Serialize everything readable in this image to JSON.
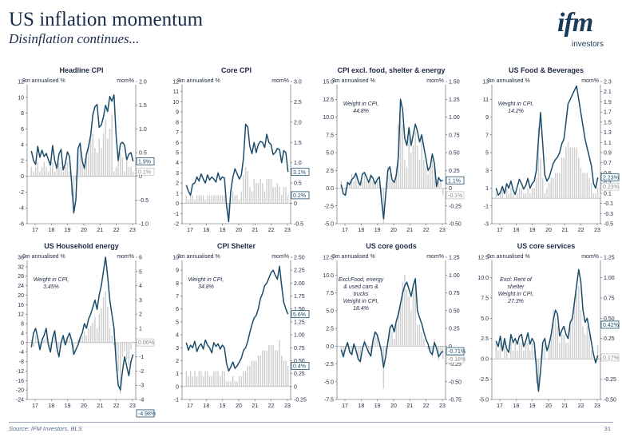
{
  "title": "US inflation momentum",
  "subtitle": "Disinflation continues...",
  "logo": {
    "brand": "ifm",
    "name": "investors"
  },
  "footer": {
    "source": "Source: IFM Investors, BLS",
    "page": "31"
  },
  "colors": {
    "line": "#1b4d6b",
    "bars": "#cfcfcf",
    "text": "#1f2a44"
  },
  "chart_data": [
    {
      "type": "bar+line",
      "title": "Headline CPI",
      "left_label": "3m annualised %",
      "right_label": "mom%",
      "left_ticks": [
        "12",
        "10",
        "8",
        "6",
        "4",
        "2",
        "0",
        "-2",
        "-4",
        "-6"
      ],
      "right_ticks": [
        "2.0",
        "1.5",
        "1.0",
        "0.5",
        "0",
        "-0.5",
        "-1.0"
      ],
      "left_range": [
        -6,
        12
      ],
      "right_range": [
        -1.0,
        2.0
      ],
      "x_labels": [
        "17",
        "18",
        "19",
        "20",
        "21",
        "22",
        "23"
      ],
      "line": [
        3.2,
        2.0,
        1.5,
        3.8,
        2.4,
        3.3,
        2.5,
        2.9,
        2.1,
        1.4,
        3.9,
        2.0,
        1.0,
        2.8,
        3.4,
        0.8,
        1.6,
        3.1,
        2.5,
        -0.8,
        -4.6,
        -3.0,
        3.5,
        4.2,
        1.9,
        1.0,
        2.8,
        3.8,
        5.2,
        7.8,
        8.8,
        9.1,
        6.2,
        6.5,
        7.5,
        9.0,
        8.2,
        10.1,
        9.5,
        10.3,
        5.2,
        2.0,
        4.1,
        4.3,
        3.9,
        2.1,
        2.8,
        3.0,
        1.9
      ],
      "bars": [
        0.2,
        0.1,
        0.2,
        0.3,
        0.1,
        0.2,
        0.3,
        0.2,
        0.1,
        0.2,
        0.3,
        0.1,
        0.2,
        0.3,
        0.2,
        0.1,
        0.2,
        0.3,
        0.1,
        -0.4,
        -0.8,
        -0.1,
        0.5,
        0.6,
        0.4,
        0.2,
        0.4,
        0.7,
        0.8,
        0.9,
        0.6,
        0.5,
        0.8,
        0.6,
        0.9,
        1.2,
        0.8,
        1.0,
        1.3,
        0.1,
        0.2,
        0.4,
        0.5,
        0.4,
        0.1,
        0.4,
        0.2,
        0.2,
        0.1
      ],
      "callouts": [
        {
          "text": "1.9%",
          "value": 1.9,
          "boxed": true
        },
        {
          "text": "0.1%",
          "value": 0.1,
          "boxed": false
        }
      ]
    },
    {
      "type": "bar+line",
      "title": "Core CPI",
      "left_label": "3m annualised %",
      "right_label": "mom%",
      "left_ticks": [
        "12",
        "11",
        "10",
        "9",
        "8",
        "7",
        "6",
        "5",
        "4",
        "3",
        "2",
        "1",
        "0",
        "-1",
        "-2"
      ],
      "right_ticks": [
        "3.0",
        "2.5",
        "2.0",
        "1.5",
        "1.0",
        "0.5",
        "0",
        "-0.5"
      ],
      "left_range": [
        -2,
        12
      ],
      "right_range": [
        -0.5,
        3.0
      ],
      "x_labels": [
        "17",
        "18",
        "19",
        "20",
        "21",
        "22",
        "23"
      ],
      "line": [
        1.8,
        1.2,
        0.8,
        1.9,
        2.0,
        2.6,
        2.2,
        2.9,
        2.4,
        2.0,
        2.8,
        2.3,
        2.6,
        2.4,
        2.1,
        3.0,
        2.3,
        2.6,
        2.5,
        -0.2,
        -1.8,
        1.2,
        2.6,
        3.4,
        2.9,
        2.4,
        2.8,
        4.5,
        7.8,
        7.5,
        5.6,
        4.9,
        6.0,
        5.0,
        5.8,
        6.1,
        6.0,
        5.5,
        6.8,
        6.0,
        5.8,
        4.8,
        5.0,
        5.4,
        5.3,
        4.0,
        5.2,
        5.0,
        3.1
      ],
      "bars": [
        0.2,
        0.1,
        0.2,
        0.2,
        0.1,
        0.2,
        0.2,
        0.2,
        0.2,
        0.1,
        0.2,
        0.2,
        0.2,
        0.2,
        0.2,
        0.2,
        0.2,
        0.2,
        0.2,
        -0.1,
        -0.4,
        0.1,
        0.3,
        0.2,
        0.2,
        0.1,
        0.3,
        0.7,
        0.9,
        0.8,
        0.4,
        0.3,
        0.6,
        0.5,
        0.5,
        0.6,
        0.5,
        0.3,
        0.6,
        0.6,
        0.6,
        0.4,
        0.4,
        0.5,
        0.4,
        0.2,
        0.4,
        0.4,
        0.2
      ],
      "callouts": [
        {
          "text": "3.1%",
          "value": 3.1,
          "boxed": true
        },
        {
          "text": "0.2%",
          "value": 0.2,
          "boxed": true
        }
      ]
    },
    {
      "type": "bar+line",
      "title": "CPI excl. food, shelter & energy",
      "left_label": "3m annualised %",
      "right_label": "mom%",
      "left_ticks": [
        "15.0",
        "12.5",
        "10.0",
        "7.5",
        "5.0",
        "2.5",
        "0.0",
        "-2.5",
        "-5.0"
      ],
      "right_ticks": [
        "1.50",
        "1.25",
        "1.00",
        "0.75",
        "0.50",
        "0.25",
        "0",
        "-0.25",
        "-0.50"
      ],
      "left_range": [
        -5,
        15
      ],
      "right_range": [
        -0.5,
        1.5
      ],
      "x_labels": [
        "17",
        "18",
        "19",
        "20",
        "21",
        "22",
        "23"
      ],
      "annotation": [
        "Weight in CPI,",
        "44.8%"
      ],
      "line": [
        0.5,
        -0.8,
        -1.0,
        0.8,
        0.5,
        1.2,
        1.5,
        2.1,
        1.0,
        0.4,
        2.0,
        2.2,
        1.5,
        0.8,
        1.8,
        1.4,
        0.6,
        1.2,
        1.6,
        -1.5,
        -4.3,
        -1.0,
        2.5,
        3.0,
        1.2,
        0.8,
        1.8,
        4.5,
        12.5,
        11.0,
        7.0,
        6.0,
        8.5,
        6.0,
        7.5,
        9.0,
        8.0,
        6.5,
        7.5,
        5.8,
        4.2,
        2.5,
        3.0,
        4.8,
        3.5,
        0.2,
        1.5,
        1.0,
        1.1
      ],
      "bars": [
        0.1,
        0.0,
        -0.1,
        0.1,
        0.1,
        0.2,
        0.1,
        0.2,
        0.1,
        0.0,
        0.1,
        0.2,
        0.1,
        0.1,
        0.2,
        0.1,
        0.1,
        0.1,
        0.1,
        -0.2,
        -0.5,
        0.0,
        0.3,
        0.2,
        0.1,
        0.1,
        0.3,
        0.9,
        1.1,
        0.9,
        0.4,
        0.3,
        0.7,
        0.5,
        0.6,
        0.8,
        0.6,
        0.4,
        0.7,
        0.4,
        0.3,
        0.2,
        0.3,
        0.4,
        0.3,
        0.0,
        0.1,
        0.1,
        -0.1
      ],
      "callouts": [
        {
          "text": "1.1%",
          "value": 1.1,
          "boxed": true
        },
        {
          "text": "-0.1%",
          "value": -0.1,
          "boxed": false
        }
      ]
    },
    {
      "type": "bar+line",
      "title": "US Food & Beverages",
      "left_label": "3m annualised %",
      "right_label": "mom%",
      "left_ticks": [
        "13",
        "11",
        "9",
        "7",
        "5",
        "3",
        "1",
        "-1",
        "-3"
      ],
      "right_ticks": [
        "2.3",
        "2.1",
        "1.9",
        "1.7",
        "1.5",
        "1.3",
        "1.1",
        "0.9",
        "0.7",
        "0.5",
        "0.3",
        "0.1",
        "-0.1",
        "-0.3",
        "-0.5"
      ],
      "left_range": [
        -3,
        13
      ],
      "right_range": [
        -0.5,
        2.3
      ],
      "x_labels": [
        "17",
        "18",
        "19",
        "20",
        "21",
        "22",
        "23"
      ],
      "annotation": [
        "Weight in CPI,",
        "14.2%"
      ],
      "line": [
        1.0,
        0.2,
        0.5,
        1.2,
        0.4,
        1.5,
        1.0,
        1.8,
        0.8,
        0.3,
        1.2,
        2.0,
        1.5,
        0.9,
        1.3,
        2.1,
        1.0,
        1.5,
        1.8,
        3.0,
        6.5,
        9.5,
        6.0,
        2.5,
        1.8,
        2.2,
        3.0,
        3.8,
        4.2,
        4.5,
        5.0,
        6.0,
        6.5,
        8.5,
        10.5,
        11.0,
        11.5,
        12.0,
        12.5,
        11.0,
        9.5,
        8.0,
        6.5,
        5.5,
        4.5,
        3.5,
        1.5,
        1.0,
        2.2
      ],
      "bars": [
        0.1,
        0.0,
        0.1,
        0.2,
        0.0,
        0.2,
        0.1,
        0.2,
        0.1,
        0.0,
        0.1,
        0.2,
        0.2,
        0.1,
        0.1,
        0.2,
        0.1,
        0.2,
        0.2,
        0.4,
        1.4,
        0.8,
        0.4,
        0.1,
        0.2,
        0.3,
        0.4,
        0.4,
        0.5,
        0.5,
        0.5,
        0.8,
        0.8,
        1.0,
        1.1,
        1.0,
        1.0,
        1.0,
        1.0,
        0.8,
        0.6,
        0.5,
        0.5,
        0.5,
        0.4,
        0.3,
        0.1,
        0.1,
        0.2
      ],
      "callouts": [
        {
          "text": "2.23%",
          "value": 2.23,
          "boxed": true
        },
        {
          "text": "0.23%",
          "value": 0.23,
          "boxed": false
        }
      ]
    },
    {
      "type": "bar+line",
      "title": "US Household energy",
      "left_label": "3m annualised %",
      "right_label": "mom%",
      "left_ticks": [
        "36",
        "32",
        "28",
        "24",
        "20",
        "16",
        "12",
        "8",
        "4",
        "0",
        "-4",
        "-8",
        "-12",
        "-16",
        "-20",
        "-24"
      ],
      "right_ticks": [
        "6",
        "5",
        "4",
        "3",
        "2",
        "1",
        "0",
        "-1",
        "-2",
        "-3",
        "-4"
      ],
      "left_range": [
        -24,
        36
      ],
      "right_range": [
        -4,
        6
      ],
      "x_labels": [
        "17",
        "18",
        "19",
        "20",
        "21",
        "22",
        "23"
      ],
      "annotation": [
        "Weight in CPI,",
        "3.45%"
      ],
      "line": [
        -2,
        4,
        6,
        2,
        -3,
        1,
        3,
        6,
        -1,
        -4,
        2,
        5,
        -2,
        -6,
        0,
        3,
        -1,
        2,
        4,
        1,
        -5,
        -3,
        -1,
        2,
        4,
        8,
        6,
        10,
        12,
        15,
        18,
        14,
        20,
        24,
        30,
        36,
        28,
        18,
        12,
        6,
        -8,
        -18,
        -20,
        -12,
        -6,
        -10,
        -14,
        -8,
        -4.98
      ],
      "bars": [
        0.2,
        -0.3,
        0.5,
        0.1,
        -0.2,
        0.3,
        0.2,
        0.4,
        -0.1,
        -0.3,
        0.2,
        0.5,
        -0.2,
        -0.4,
        0.1,
        0.3,
        -0.1,
        0.2,
        0.4,
        -0.2,
        -0.5,
        -0.1,
        0.2,
        0.3,
        0.4,
        0.8,
        0.5,
        1.0,
        1.2,
        1.4,
        1.8,
        1.0,
        2.0,
        2.4,
        3.2,
        3.6,
        2.5,
        1.0,
        0.5,
        -0.2,
        -1.0,
        -2.0,
        -3.6,
        -1.0,
        -0.6,
        -1.2,
        -1.6,
        -0.5,
        0.06
      ],
      "callouts": [
        {
          "text": "0.06%",
          "value": 0.06,
          "boxed": false
        },
        {
          "text": "-4.98%",
          "value": -4.98,
          "boxed": true
        }
      ]
    },
    {
      "type": "bar+line",
      "title": "CPI Shelter",
      "left_label": "3m annualised %",
      "right_label": "mom%",
      "left_ticks": [
        "10",
        "9",
        "8",
        "7",
        "6",
        "5",
        "4",
        "3",
        "2",
        "1",
        "0",
        "-1"
      ],
      "right_ticks": [
        "2.50",
        "2.25",
        "2.00",
        "1.75",
        "1.50",
        "1.25",
        "1.00",
        "0.75",
        "0.50",
        "0.25",
        "0",
        "-0.25"
      ],
      "left_range": [
        -1,
        10
      ],
      "right_range": [
        -0.25,
        2.5
      ],
      "x_labels": [
        "17",
        "18",
        "19",
        "20",
        "21",
        "22",
        "23"
      ],
      "annotation": [
        "Weight in CPI,",
        "34.8%"
      ],
      "line": [
        3.4,
        2.8,
        3.2,
        3.0,
        3.5,
        2.7,
        3.1,
        3.3,
        2.9,
        3.6,
        3.2,
        3.0,
        2.6,
        3.4,
        3.1,
        3.3,
        2.9,
        3.2,
        3.0,
        1.8,
        1.2,
        1.5,
        1.9,
        1.4,
        1.6,
        1.9,
        2.2,
        2.8,
        3.0,
        3.5,
        4.2,
        4.8,
        5.3,
        5.5,
        6.0,
        6.8,
        7.2,
        7.8,
        8.0,
        8.4,
        8.8,
        9.0,
        8.6,
        8.3,
        9.3,
        7.8,
        6.5,
        6.0,
        5.6
      ],
      "bars": [
        0.3,
        0.2,
        0.3,
        0.2,
        0.3,
        0.2,
        0.3,
        0.3,
        0.2,
        0.3,
        0.3,
        0.2,
        0.2,
        0.3,
        0.3,
        0.3,
        0.2,
        0.3,
        0.3,
        0.1,
        0.1,
        0.1,
        0.2,
        0.1,
        0.1,
        0.2,
        0.2,
        0.3,
        0.3,
        0.4,
        0.4,
        0.5,
        0.5,
        0.5,
        0.6,
        0.6,
        0.7,
        0.7,
        0.7,
        0.8,
        0.8,
        0.8,
        0.7,
        0.7,
        0.9,
        0.6,
        0.5,
        0.5,
        0.4
      ],
      "callouts": [
        {
          "text": "5.6%",
          "value": 5.6,
          "boxed": true
        },
        {
          "text": "0.4%",
          "value": 0.4,
          "boxed": true
        }
      ]
    },
    {
      "type": "bar+line",
      "title": "US core goods",
      "left_label": "3m annualised %",
      "right_label": "mom%",
      "left_ticks": [
        "12.5",
        "10.0",
        "7.5",
        "5.0",
        "2.5",
        "0.0",
        "-2.5",
        "-5.0",
        "-7.5"
      ],
      "right_ticks": [
        "1.25",
        "1.00",
        "0.75",
        "0.50",
        "0.25",
        "0",
        "-0.25",
        "-0.50",
        "-0.75"
      ],
      "left_range": [
        -7.5,
        12.5
      ],
      "right_range": [
        -0.75,
        1.25
      ],
      "x_labels": [
        "17",
        "18",
        "19",
        "20",
        "21",
        "22",
        "23"
      ],
      "annotation": [
        "Excl:Food, energy",
        "& used cars &",
        "trucks",
        "Weight in CPI,",
        "18.4%"
      ],
      "line": [
        -0.5,
        -1.5,
        -0.3,
        0.5,
        -0.8,
        -1.2,
        0.3,
        -0.6,
        -1.8,
        -2.2,
        -0.4,
        0.6,
        -0.2,
        -0.9,
        -1.4,
        0.8,
        2.0,
        1.6,
        0.5,
        -0.8,
        -3.0,
        -1.5,
        0.5,
        2.5,
        3.0,
        2.0,
        3.5,
        4.5,
        6.0,
        7.5,
        8.5,
        9.0,
        8.0,
        7.0,
        8.5,
        9.5,
        5.0,
        4.0,
        3.2,
        2.0,
        1.0,
        0.3,
        -0.8,
        -1.2,
        0.5,
        -0.3,
        -1.5,
        -1.0,
        -0.7
      ],
      "bars": [
        -0.05,
        -0.15,
        0.0,
        0.05,
        -0.1,
        -0.1,
        0.05,
        -0.05,
        -0.2,
        -0.2,
        -0.05,
        0.1,
        0.0,
        -0.1,
        -0.1,
        0.1,
        0.2,
        0.15,
        0.05,
        -0.1,
        -0.6,
        -0.1,
        0.1,
        0.3,
        0.2,
        0.1,
        0.3,
        0.5,
        0.6,
        0.9,
        1.0,
        0.8,
        0.7,
        0.5,
        0.8,
        0.9,
        0.3,
        0.3,
        0.2,
        0.1,
        0.0,
        -0.05,
        -0.1,
        -0.15,
        0.1,
        -0.05,
        -0.2,
        -0.1,
        -0.18
      ],
      "callouts": [
        {
          "text": "-0.71%",
          "value": -0.71,
          "boxed": true
        },
        {
          "text": "-0.18%",
          "value": -0.18,
          "boxed": false
        }
      ]
    },
    {
      "type": "bar+line",
      "title": "US core services",
      "left_label": "3m annualised %",
      "right_label": "mom%",
      "left_ticks": [
        "12.5",
        "10.0",
        "7.5",
        "5.0",
        "2.5",
        "0.0",
        "-2.5",
        "-5.0"
      ],
      "right_ticks": [
        "1.25",
        "1.00",
        "0.75",
        "0.50",
        "0.25",
        "0",
        "-0.25",
        "-0.50"
      ],
      "left_range": [
        -5,
        12.5
      ],
      "right_range": [
        -0.5,
        1.25
      ],
      "x_labels": [
        "17",
        "18",
        "19",
        "20",
        "21",
        "22",
        "23"
      ],
      "annotation": [
        "Excl: Rent of",
        "shelter",
        "Weight in CPI,",
        "27.3%"
      ],
      "line": [
        2.2,
        1.5,
        2.8,
        1.0,
        2.5,
        1.2,
        0.8,
        3.0,
        2.0,
        2.5,
        1.8,
        2.8,
        3.0,
        1.5,
        2.2,
        3.2,
        1.8,
        2.5,
        2.0,
        -1.0,
        -4.0,
        -1.5,
        2.0,
        2.5,
        1.0,
        1.8,
        3.0,
        4.8,
        6.0,
        5.5,
        2.8,
        3.5,
        4.0,
        3.0,
        2.5,
        4.5,
        5.0,
        7.0,
        9.0,
        11.0,
        9.5,
        6.0,
        4.5,
        5.0,
        3.5,
        2.0,
        0.5,
        -0.5,
        0.42
      ],
      "bars": [
        0.2,
        0.1,
        0.2,
        0.0,
        0.2,
        0.1,
        0.0,
        0.2,
        0.1,
        0.2,
        0.1,
        0.2,
        0.2,
        0.1,
        0.2,
        0.2,
        0.1,
        0.2,
        0.1,
        -0.3,
        -0.4,
        0.0,
        0.2,
        0.2,
        0.0,
        0.2,
        0.3,
        0.6,
        0.5,
        0.4,
        0.2,
        0.3,
        0.3,
        0.2,
        0.2,
        0.4,
        0.5,
        0.7,
        0.8,
        0.9,
        0.6,
        0.4,
        0.3,
        0.4,
        0.3,
        0.1,
        0.0,
        0.0,
        0.17
      ],
      "callouts": [
        {
          "text": "0.17%",
          "value": 0.17,
          "boxed": false
        },
        {
          "text": "0.42%",
          "value": 0.42,
          "boxed": true
        }
      ]
    }
  ]
}
